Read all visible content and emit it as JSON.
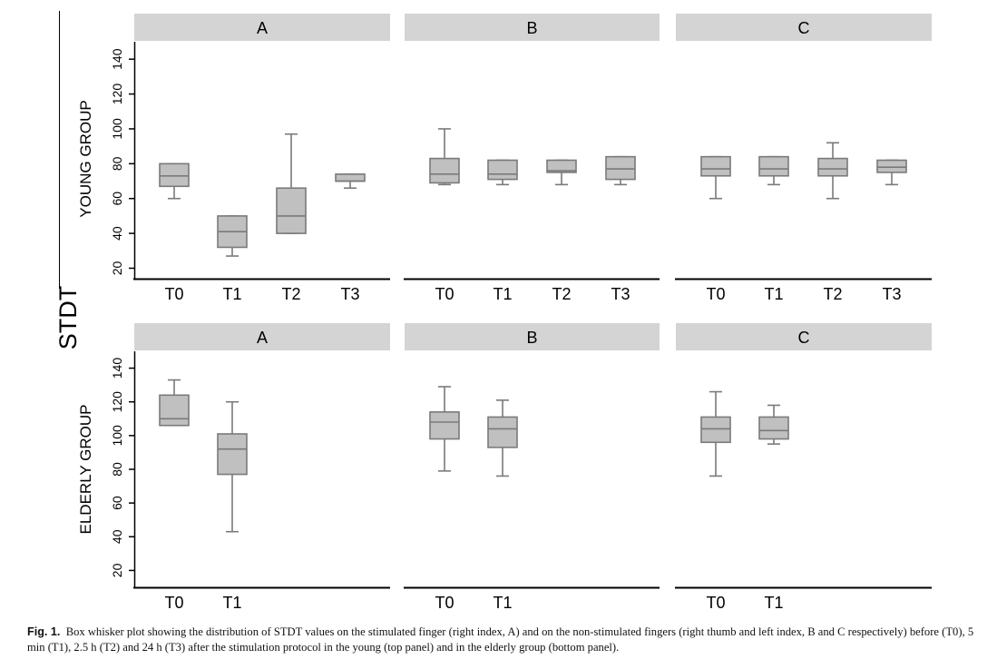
{
  "figure": {
    "ylabel": "STDT",
    "caption_label": "Fig. 1.",
    "caption_text": "Box whisker plot showing the distribution of STDT values on the stimulated finger (right index, A) and on the non-stimulated fingers (right thumb and left index, B and C respectively) before (T0), 5 min (T1), 2.5 h (T2) and 24 h (T3) after the stimulation protocol in the young (top panel) and in the elderly group (bottom panel)."
  },
  "colors": {
    "box_fill": "#c0c0c0",
    "box_stroke": "#7a7a7a",
    "strip_fill": "#d4d4d4",
    "axis": "#000000"
  },
  "chart_data": [
    {
      "type": "box",
      "row_label": "YOUNG GROUP",
      "panel": "A",
      "categories": [
        "T0",
        "T1",
        "T2",
        "T3"
      ],
      "y_ticks": [
        20,
        40,
        60,
        80,
        100,
        120,
        140
      ],
      "ylim": [
        14,
        150
      ],
      "boxes": [
        {
          "min": 60,
          "q1": 67,
          "median": 73,
          "q3": 80,
          "max": 80
        },
        {
          "min": 27,
          "q1": 32,
          "median": 41,
          "q3": 50,
          "max": 50
        },
        {
          "min": 40,
          "q1": 40,
          "median": 50,
          "q3": 66,
          "max": 97
        },
        {
          "min": 66,
          "q1": 70,
          "median": 70,
          "q3": 74,
          "max": 74
        }
      ]
    },
    {
      "type": "box",
      "row_label": "YOUNG GROUP",
      "panel": "B",
      "categories": [
        "T0",
        "T1",
        "T2",
        "T3"
      ],
      "y_ticks": [
        20,
        40,
        60,
        80,
        100,
        120,
        140
      ],
      "ylim": [
        14,
        150
      ],
      "boxes": [
        {
          "min": 68,
          "q1": 69,
          "median": 74,
          "q3": 83,
          "max": 100
        },
        {
          "min": 68,
          "q1": 71,
          "median": 74,
          "q3": 82,
          "max": 82
        },
        {
          "min": 68,
          "q1": 75,
          "median": 76,
          "q3": 82,
          "max": 82
        },
        {
          "min": 68,
          "q1": 71,
          "median": 77,
          "q3": 84,
          "max": 84
        }
      ]
    },
    {
      "type": "box",
      "row_label": "YOUNG GROUP",
      "panel": "C",
      "categories": [
        "T0",
        "T1",
        "T2",
        "T3"
      ],
      "y_ticks": [
        20,
        40,
        60,
        80,
        100,
        120,
        140
      ],
      "ylim": [
        14,
        150
      ],
      "boxes": [
        {
          "min": 60,
          "q1": 73,
          "median": 77,
          "q3": 84,
          "max": 84
        },
        {
          "min": 68,
          "q1": 73,
          "median": 77,
          "q3": 84,
          "max": 84
        },
        {
          "min": 60,
          "q1": 73,
          "median": 77,
          "q3": 83,
          "max": 92
        },
        {
          "min": 68,
          "q1": 75,
          "median": 78,
          "q3": 82,
          "max": 82
        }
      ]
    },
    {
      "type": "box",
      "row_label": "ELDERLY GROUP",
      "panel": "A",
      "categories": [
        "T0",
        "T1"
      ],
      "y_ticks": [
        20,
        40,
        60,
        80,
        100,
        120,
        140
      ],
      "ylim": [
        10,
        150
      ],
      "boxes": [
        {
          "min": 106,
          "q1": 106,
          "median": 110,
          "q3": 124,
          "max": 133
        },
        {
          "min": 43,
          "q1": 77,
          "median": 92,
          "q3": 101,
          "max": 120
        }
      ]
    },
    {
      "type": "box",
      "row_label": "ELDERLY GROUP",
      "panel": "B",
      "categories": [
        "T0",
        "T1"
      ],
      "y_ticks": [
        20,
        40,
        60,
        80,
        100,
        120,
        140
      ],
      "ylim": [
        10,
        150
      ],
      "boxes": [
        {
          "min": 79,
          "q1": 98,
          "median": 108,
          "q3": 114,
          "max": 129
        },
        {
          "min": 76,
          "q1": 93,
          "median": 104,
          "q3": 111,
          "max": 121
        }
      ]
    },
    {
      "type": "box",
      "row_label": "ELDERLY GROUP",
      "panel": "C",
      "categories": [
        "T0",
        "T1"
      ],
      "y_ticks": [
        20,
        40,
        60,
        80,
        100,
        120,
        140
      ],
      "ylim": [
        10,
        150
      ],
      "boxes": [
        {
          "min": 76,
          "q1": 96,
          "median": 104,
          "q3": 111,
          "max": 126
        },
        {
          "min": 95,
          "q1": 98,
          "median": 103,
          "q3": 111,
          "max": 118
        }
      ]
    }
  ]
}
